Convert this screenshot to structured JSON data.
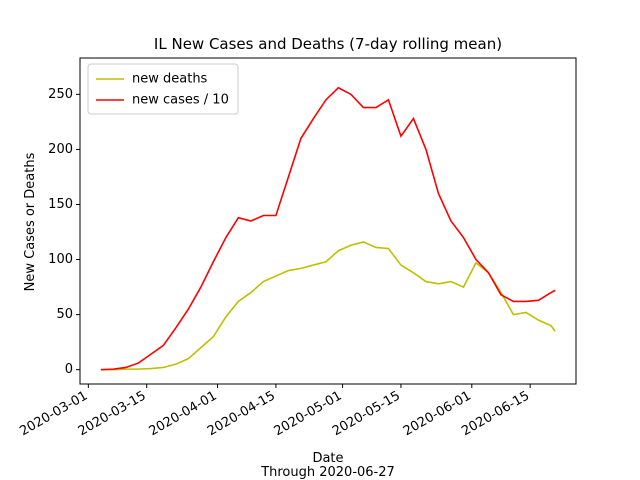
{
  "chart_data": {
    "type": "line",
    "title": "IL New Cases and Deaths (7-day rolling mean)",
    "x_label": "Date",
    "subtitle": "Through 2020-06-27",
    "y_label": "New Cases or Deaths",
    "x": [
      "2020-03-04",
      "2020-03-07",
      "2020-03-10",
      "2020-03-13",
      "2020-03-16",
      "2020-03-19",
      "2020-03-22",
      "2020-03-25",
      "2020-03-28",
      "2020-03-31",
      "2020-04-03",
      "2020-04-06",
      "2020-04-09",
      "2020-04-12",
      "2020-04-15",
      "2020-04-18",
      "2020-04-21",
      "2020-04-24",
      "2020-04-27",
      "2020-04-30",
      "2020-05-03",
      "2020-05-06",
      "2020-05-09",
      "2020-05-12",
      "2020-05-15",
      "2020-05-18",
      "2020-05-21",
      "2020-05-24",
      "2020-05-27",
      "2020-05-30",
      "2020-06-02",
      "2020-06-05",
      "2020-06-08",
      "2020-06-11",
      "2020-06-14",
      "2020-06-17",
      "2020-06-20",
      "2020-06-21"
    ],
    "series": [
      {
        "name": "new deaths",
        "color": "#bfbf00",
        "values": [
          0,
          0,
          0.5,
          0.5,
          1,
          2,
          5,
          10,
          20,
          30,
          48,
          62,
          70,
          80,
          85,
          90,
          92,
          95,
          98,
          108,
          113,
          116,
          111,
          110,
          95,
          88,
          80,
          78,
          80,
          75,
          97,
          88,
          70,
          50,
          52,
          45,
          40,
          35
        ]
      },
      {
        "name": "new cases / 10",
        "color": "#ff0000",
        "values": [
          0,
          0.5,
          2,
          6,
          14,
          22,
          38,
          55,
          75,
          98,
          120,
          138,
          135,
          140,
          140,
          175,
          210,
          228,
          245,
          256,
          250,
          238,
          238,
          245,
          212,
          228,
          200,
          160,
          135,
          120,
          100,
          88,
          68,
          62,
          62,
          63,
          70,
          72
        ]
      }
    ],
    "xlim": [
      "2020-02-28",
      "2020-06-26"
    ],
    "xticks": [
      "2020-03-01",
      "2020-03-15",
      "2020-04-01",
      "2020-04-15",
      "2020-05-01",
      "2020-05-15",
      "2020-06-01",
      "2020-06-15"
    ],
    "ylim": [
      -13,
      283
    ],
    "yticks": [
      0,
      50,
      100,
      150,
      200,
      250
    ],
    "legend": "upper left"
  }
}
